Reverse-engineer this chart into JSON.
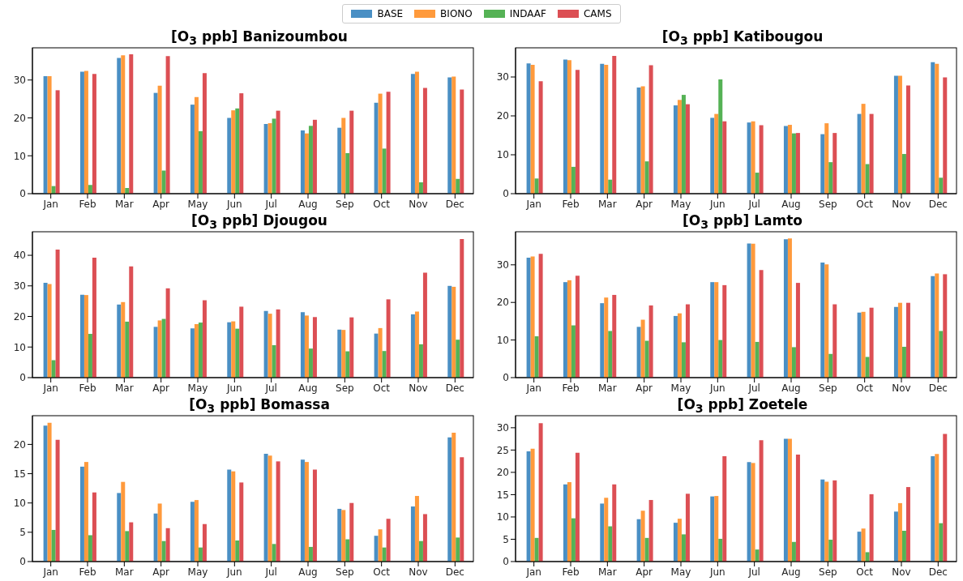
{
  "chart_data": [
    {
      "type": "bar",
      "title": "[O$_{3}$ ppb] Banizoumbou",
      "categories": [
        "Jan",
        "Feb",
        "Mar",
        "Apr",
        "May",
        "Jun",
        "Jul",
        "Aug",
        "Sep",
        "Oct",
        "Nov",
        "Dec"
      ],
      "ylim": [
        0,
        38.5
      ],
      "yticks": [
        0,
        10,
        20,
        30
      ],
      "grid": false,
      "legend": "top",
      "series": [
        {
          "name": "BASE",
          "color": "#4a8fc4",
          "values": [
            31.0,
            32.2,
            35.8,
            26.6,
            23.5,
            20.0,
            18.4,
            16.7,
            17.4,
            24.0,
            31.6,
            30.7
          ]
        },
        {
          "name": "BIONO",
          "color": "#ff9a3c",
          "values": [
            31.0,
            32.4,
            36.5,
            28.5,
            25.5,
            22.0,
            18.6,
            15.9,
            20.0,
            26.4,
            32.2,
            30.9
          ]
        },
        {
          "name": "INDAAF",
          "color": "#55b255",
          "values": [
            2.0,
            2.3,
            1.5,
            6.1,
            16.5,
            22.5,
            19.8,
            17.9,
            10.7,
            11.9,
            3.0,
            3.9
          ]
        },
        {
          "name": "CAMS",
          "color": "#dc4f54",
          "values": [
            27.3,
            31.6,
            36.8,
            36.3,
            31.8,
            26.5,
            21.9,
            19.5,
            21.9,
            26.9,
            27.9,
            27.5
          ]
        }
      ]
    },
    {
      "type": "bar",
      "title": "[O$_{3}$ ppb] Katibougou",
      "categories": [
        "Jan",
        "Feb",
        "Mar",
        "Apr",
        "May",
        "Jun",
        "Jul",
        "Aug",
        "Sep",
        "Oct",
        "Nov",
        "Dec"
      ],
      "ylim": [
        0,
        37.5
      ],
      "yticks": [
        0,
        10,
        20,
        30
      ],
      "grid": false,
      "series": [
        {
          "color": "#4a8fc4",
          "values": [
            33.5,
            34.5,
            33.4,
            27.3,
            22.7,
            19.5,
            18.3,
            17.4,
            15.3,
            20.5,
            30.3,
            33.8
          ]
        },
        {
          "color": "#ff9a3c",
          "values": [
            33.1,
            34.3,
            33.1,
            27.6,
            24.1,
            20.5,
            18.6,
            17.7,
            18.1,
            23.1,
            30.3,
            33.4
          ]
        },
        {
          "color": "#55b255",
          "values": [
            3.9,
            6.9,
            3.6,
            8.3,
            25.4,
            29.4,
            5.4,
            15.5,
            8.1,
            7.6,
            10.2,
            4.1
          ]
        },
        {
          "color": "#dc4f54",
          "values": [
            28.9,
            31.8,
            35.4,
            33.0,
            23.0,
            18.6,
            17.6,
            15.6,
            15.6,
            20.5,
            27.8,
            29.9
          ]
        }
      ]
    },
    {
      "type": "bar",
      "title": "[O$_{3}$ ppb] Djougou",
      "categories": [
        "Jan",
        "Feb",
        "Mar",
        "Apr",
        "May",
        "Jun",
        "Jul",
        "Aug",
        "Sep",
        "Oct",
        "Nov",
        "Dec"
      ],
      "ylim": [
        0,
        47.7
      ],
      "yticks": [
        0,
        10,
        20,
        30,
        40
      ],
      "grid": false,
      "series": [
        {
          "color": "#4a8fc4",
          "values": [
            31.0,
            27.1,
            23.9,
            16.6,
            16.1,
            18.1,
            21.8,
            21.4,
            15.7,
            14.4,
            20.7,
            30.0
          ]
        },
        {
          "color": "#ff9a3c",
          "values": [
            30.6,
            27.0,
            24.7,
            18.7,
            17.5,
            18.4,
            20.9,
            20.3,
            15.6,
            16.2,
            21.6,
            29.7
          ]
        },
        {
          "color": "#55b255",
          "values": [
            5.7,
            14.3,
            18.3,
            19.2,
            18.0,
            16.0,
            10.6,
            9.5,
            8.6,
            8.7,
            10.9,
            12.4
          ]
        },
        {
          "color": "#dc4f54",
          "values": [
            41.9,
            39.2,
            36.4,
            29.2,
            25.3,
            23.2,
            22.3,
            19.8,
            19.7,
            25.6,
            34.3,
            45.3
          ]
        }
      ]
    },
    {
      "type": "bar",
      "title": "[O$_{3}$ ppb] Lamto",
      "categories": [
        "Jan",
        "Feb",
        "Mar",
        "Apr",
        "May",
        "Jun",
        "Jul",
        "Aug",
        "Sep",
        "Oct",
        "Nov",
        "Dec"
      ],
      "ylim": [
        0,
        38.8
      ],
      "yticks": [
        0,
        10,
        20,
        30
      ],
      "grid": false,
      "series": [
        {
          "color": "#4a8fc4",
          "values": [
            31.9,
            25.4,
            19.8,
            13.5,
            16.4,
            25.4,
            35.7,
            36.8,
            30.6,
            17.3,
            18.8,
            27.0
          ]
        },
        {
          "color": "#ff9a3c",
          "values": [
            32.2,
            25.9,
            21.3,
            15.4,
            17.1,
            25.4,
            35.6,
            37.0,
            30.1,
            17.5,
            19.9,
            27.7
          ]
        },
        {
          "color": "#55b255",
          "values": [
            11.0,
            13.9,
            12.4,
            9.8,
            9.4,
            10.0,
            9.5,
            8.1,
            6.3,
            5.5,
            8.2,
            12.4
          ]
        },
        {
          "color": "#dc4f54",
          "values": [
            32.9,
            27.1,
            22.0,
            19.2,
            19.5,
            24.6,
            28.6,
            25.2,
            19.5,
            18.6,
            19.9,
            27.5
          ]
        }
      ]
    },
    {
      "type": "bar",
      "title": "[O$_{3}$ ppb] Bomassa",
      "categories": [
        "Jan",
        "Feb",
        "Mar",
        "Apr",
        "May",
        "Jun",
        "Jul",
        "Aug",
        "Sep",
        "Oct",
        "Nov",
        "Dec"
      ],
      "ylim": [
        0,
        24.9
      ],
      "yticks": [
        0,
        5,
        10,
        15,
        20
      ],
      "grid": false,
      "series": [
        {
          "color": "#4a8fc4",
          "values": [
            23.2,
            16.2,
            11.7,
            8.2,
            10.2,
            15.7,
            18.4,
            17.4,
            9.0,
            4.4,
            9.4,
            21.2
          ]
        },
        {
          "color": "#ff9a3c",
          "values": [
            23.7,
            17.0,
            13.6,
            9.9,
            10.5,
            15.4,
            18.1,
            17.0,
            8.8,
            5.5,
            11.2,
            22.0
          ]
        },
        {
          "color": "#55b255",
          "values": [
            5.4,
            4.5,
            5.2,
            3.5,
            2.4,
            3.6,
            3.0,
            2.5,
            3.8,
            2.4,
            3.5,
            4.1
          ]
        },
        {
          "color": "#dc4f54",
          "values": [
            20.8,
            11.8,
            6.7,
            5.7,
            6.4,
            13.5,
            17.1,
            15.7,
            10.0,
            7.3,
            8.1,
            17.8
          ]
        }
      ]
    },
    {
      "type": "bar",
      "title": "[O$_{3}$ ppb] Zoetele",
      "categories": [
        "Jan",
        "Feb",
        "Mar",
        "Apr",
        "May",
        "Jun",
        "Jul",
        "Aug",
        "Sep",
        "Oct",
        "Nov",
        "Dec"
      ],
      "ylim": [
        0,
        32.7
      ],
      "yticks": [
        0,
        5,
        10,
        15,
        20,
        25,
        30
      ],
      "grid": false,
      "series": [
        {
          "color": "#4a8fc4",
          "values": [
            24.7,
            17.3,
            13.0,
            9.5,
            8.7,
            14.6,
            22.3,
            27.5,
            18.4,
            6.7,
            11.2,
            23.6
          ]
        },
        {
          "color": "#ff9a3c",
          "values": [
            25.3,
            17.8,
            14.3,
            11.4,
            9.6,
            14.7,
            22.1,
            27.5,
            17.9,
            7.4,
            13.1,
            24.1
          ]
        },
        {
          "color": "#55b255",
          "values": [
            5.3,
            9.7,
            7.9,
            5.3,
            6.1,
            5.1,
            2.7,
            4.4,
            4.9,
            2.1,
            6.9,
            8.6
          ]
        },
        {
          "color": "#dc4f54",
          "values": [
            31.0,
            24.4,
            17.3,
            13.8,
            15.2,
            23.6,
            27.2,
            24.0,
            18.2,
            15.1,
            16.7,
            28.6
          ]
        }
      ]
    }
  ]
}
